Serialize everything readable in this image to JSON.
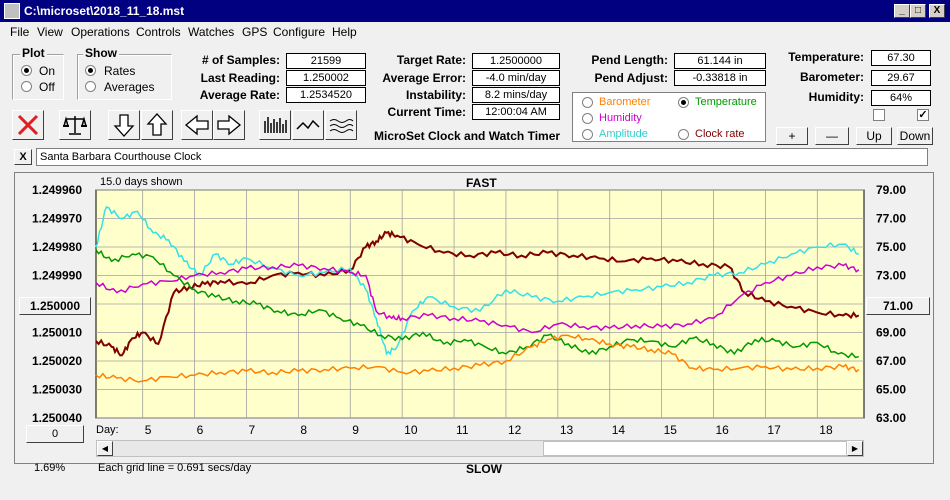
{
  "window": {
    "title": "C:\\microset\\2018_11_18.mst",
    "minimize": "_",
    "maximize": "□",
    "close": "X"
  },
  "menu": [
    "File",
    "View",
    "Operations",
    "Controls",
    "Watches",
    "GPS",
    "Configure",
    "Help"
  ],
  "plot_group": {
    "title": "Plot",
    "options": [
      "On",
      "Off"
    ],
    "selected": "On"
  },
  "show_group": {
    "title": "Show",
    "options": [
      "Rates",
      "Averages"
    ],
    "selected": "Rates"
  },
  "stats": {
    "samples_label": "# of Samples:",
    "samples": "21599",
    "last_label": "Last Reading:",
    "last": "1.250002",
    "avg_rate_label": "Average Rate:",
    "avg_rate": "1.2534520",
    "target_label": "Target Rate:",
    "target": "1.2500000",
    "avg_err_label": "Average Error:",
    "avg_err": "-4.0 min/day",
    "instab_label": "Instability:",
    "instab": "8.2 mins/day",
    "time_label": "Current Time:",
    "time": "12:00:04 AM",
    "pend_len_label": "Pend Length:",
    "pend_len": "61.144 in",
    "pend_adj_label": "Pend Adjust:",
    "pend_adj": "-0.33818 in",
    "temp_label": "Temperature:",
    "temp": "67.30",
    "baro_label": "Barometer:",
    "baro": "29.67",
    "hum_label": "Humidity:",
    "hum": "64%"
  },
  "app_caption": "MicroSet Clock and Watch Timer",
  "sensor_options": {
    "items": [
      {
        "label": "Barometer",
        "color": "#ff8000",
        "selected": false
      },
      {
        "label": "Temperature",
        "color": "#009900",
        "selected": true
      },
      {
        "label": "Humidity",
        "color": "#cc00cc",
        "selected": false
      },
      {
        "label": "Amplitude",
        "color": "#33cccc",
        "selected": false
      },
      {
        "label": "Clock rate",
        "color": "#800000",
        "selected": false
      }
    ]
  },
  "checkboxes": [
    {
      "checked": false
    },
    {
      "checked": true
    }
  ],
  "scale_buttons": [
    "+",
    "—",
    "Up",
    "Down"
  ],
  "clock_name_close": "X",
  "clock_name": "Santa Barbara Courthouse Clock",
  "chart_info": {
    "days_shown": "15.0 days shown",
    "top_label": "FAST",
    "bottom_label": "SLOW",
    "grid_note": "Each grid line = 0.691 secs/day",
    "percent": "1.69%",
    "left_center_btn": "1.250000",
    "right_center_btn": "71.00",
    "zero_btn": "0",
    "day_label": "Day:"
  },
  "colors": {
    "bg": "#ffffcc",
    "barometer": "#ff8000",
    "temperature": "#009900",
    "humidity": "#cc00cc",
    "amplitude": "#33e0e8",
    "clock_rate": "#800000"
  },
  "chart_data": {
    "type": "line",
    "xlabel": "Day:",
    "x_ticks": [
      5,
      6,
      7,
      8,
      9,
      10,
      11,
      12,
      13,
      14,
      15,
      16,
      17,
      18
    ],
    "xlim": [
      4.1,
      18.9
    ],
    "left_axis": {
      "ticks": [
        "1.249960",
        "1.249970",
        "1.249980",
        "1.249990",
        "1.250000",
        "1.250010",
        "1.250020",
        "1.250030",
        "1.250040"
      ],
      "ylim": [
        1.24996,
        1.25004
      ],
      "inverted": true
    },
    "right_axis": {
      "ticks": [
        "79.00",
        "77.00",
        "75.00",
        "73.00",
        "71.00",
        "69.00",
        "67.00",
        "65.00",
        "63.00"
      ],
      "ylim": [
        63,
        79
      ]
    },
    "series": [
      {
        "name": "Clock rate",
        "axis": "left",
        "color": "#800000",
        "x": [
          4.1,
          4.4,
          4.6,
          4.8,
          5.0,
          5.3,
          5.6,
          5.9,
          6.2,
          6.5,
          7.0,
          7.5,
          8.0,
          8.5,
          9.0,
          9.3,
          9.5,
          9.7,
          9.9,
          10.3,
          10.8,
          11.3,
          11.8,
          12.3,
          12.8,
          13.3,
          13.8,
          14.3,
          14.8,
          15.3,
          15.8,
          16.3,
          16.6,
          17.0,
          17.5,
          18.0,
          18.5,
          18.8
        ],
        "y": [
          1.250013,
          1.250015,
          1.250018,
          1.250012,
          1.25001,
          1.250014,
          1.249996,
          1.249994,
          1.249993,
          1.249992,
          1.249993,
          1.24999,
          1.249989,
          1.24999,
          1.249988,
          1.24998,
          1.249978,
          1.249975,
          1.249976,
          1.249979,
          1.249982,
          1.249983,
          1.249982,
          1.249983,
          1.249982,
          1.249983,
          1.249984,
          1.249985,
          1.249984,
          1.249985,
          1.249986,
          1.249987,
          1.249996,
          1.249999,
          1.250001,
          1.250003,
          1.250004,
          1.250004
        ]
      },
      {
        "name": "Amplitude",
        "axis": "right",
        "color": "#33e0e8",
        "x": [
          4.1,
          4.3,
          4.6,
          4.9,
          5.2,
          5.5,
          5.8,
          6.1,
          6.4,
          6.7,
          7.0,
          7.5,
          8.0,
          8.5,
          9.0,
          9.3,
          9.5,
          9.7,
          9.9,
          10.2,
          10.5,
          11.0,
          11.5,
          12.0,
          12.5,
          13.0,
          13.5,
          14.0,
          14.5,
          15.0,
          15.5,
          16.0,
          16.5,
          17.0,
          17.5,
          18.0,
          18.5,
          18.8
        ],
        "y": [
          75.0,
          77.8,
          77.0,
          77.5,
          76.0,
          75.5,
          74.0,
          73.0,
          74.5,
          73.8,
          74.2,
          73.5,
          73.0,
          73.2,
          73.5,
          72.0,
          70.0,
          67.5,
          68.0,
          70.5,
          71.5,
          70.8,
          70.5,
          72.0,
          71.5,
          71.2,
          71.5,
          71.8,
          72.0,
          72.2,
          72.5,
          73.0,
          73.2,
          73.8,
          74.5,
          75.0,
          75.2,
          74.5
        ]
      },
      {
        "name": "Humidity",
        "axis": "right",
        "color": "#cc00cc",
        "x": [
          4.1,
          4.5,
          5.0,
          5.5,
          6.0,
          6.5,
          7.0,
          7.5,
          8.0,
          8.5,
          9.0,
          9.3,
          9.5,
          9.8,
          10.0,
          10.5,
          11.0,
          11.5,
          12.0,
          12.5,
          13.0,
          13.5,
          14.0,
          14.5,
          15.0,
          15.5,
          16.0,
          16.5,
          17.0,
          17.5,
          18.0,
          18.5,
          18.8
        ],
        "y": [
          72.5,
          71.8,
          72.4,
          72.6,
          73.0,
          73.2,
          73.5,
          73.6,
          73.7,
          73.5,
          73.2,
          73.0,
          70.5,
          70.0,
          70.0,
          70.2,
          70.0,
          69.8,
          69.5,
          69.0,
          69.6,
          69.4,
          69.3,
          69.5,
          69.4,
          69.6,
          70.0,
          71.5,
          72.5,
          73.0,
          73.6,
          73.7,
          73.4
        ]
      },
      {
        "name": "Temperature",
        "axis": "right",
        "color": "#009900",
        "x": [
          4.1,
          4.4,
          4.8,
          5.2,
          5.6,
          6.0,
          6.4,
          6.8,
          7.2,
          7.6,
          8.0,
          8.4,
          8.8,
          9.2,
          9.6,
          10.0,
          10.4,
          10.8,
          11.2,
          11.6,
          12.0,
          12.4,
          12.8,
          13.2,
          13.6,
          14.0,
          14.4,
          14.8,
          15.2,
          15.6,
          16.0,
          16.4,
          16.8,
          17.2,
          17.6,
          18.0,
          18.4,
          18.8
        ],
        "y": [
          74.8,
          74.0,
          74.5,
          74.3,
          73.0,
          72.0,
          71.5,
          71.2,
          71.0,
          70.5,
          70.2,
          70.6,
          70.0,
          69.5,
          68.8,
          68.5,
          69.0,
          68.2,
          68.5,
          68.0,
          67.5,
          68.0,
          68.8,
          68.2,
          67.5,
          68.0,
          68.5,
          68.4,
          68.0,
          68.6,
          68.2,
          67.5,
          68.5,
          68.4,
          68.0,
          68.3,
          67.5,
          67.3
        ]
      },
      {
        "name": "Barometer",
        "axis": "right",
        "color": "#ff8000",
        "x": [
          4.1,
          4.5,
          5.0,
          5.5,
          6.0,
          6.5,
          7.0,
          7.5,
          8.0,
          8.5,
          9.0,
          9.5,
          10.0,
          10.5,
          11.0,
          11.5,
          12.0,
          12.5,
          12.8,
          13.2,
          13.6,
          14.0,
          14.4,
          14.8,
          15.2,
          15.6,
          16.0,
          16.5,
          17.0,
          17.5,
          18.0,
          18.5,
          18.8
        ],
        "y": [
          66.0,
          65.8,
          65.6,
          65.9,
          66.0,
          66.2,
          66.3,
          66.2,
          66.3,
          66.4,
          66.5,
          66.6,
          66.2,
          66.3,
          66.5,
          66.7,
          67.0,
          68.0,
          68.5,
          68.8,
          68.5,
          68.2,
          68.0,
          67.8,
          67.5,
          66.5,
          66.4,
          66.5,
          66.6,
          66.4,
          66.5,
          66.6,
          66.4
        ]
      }
    ]
  }
}
